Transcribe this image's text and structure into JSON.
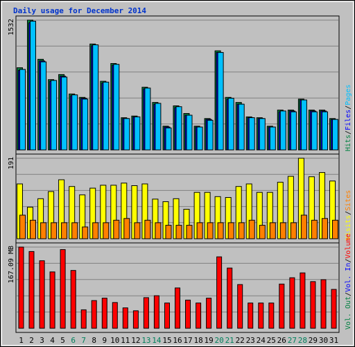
{
  "chart_data": {
    "type": "bar",
    "title": "Daily usage for December 2014",
    "categories": [
      "1",
      "2",
      "3",
      "4",
      "5",
      "6",
      "7",
      "8",
      "9",
      "10",
      "11",
      "12",
      "13",
      "14",
      "15",
      "16",
      "17",
      "18",
      "19",
      "20",
      "21",
      "22",
      "23",
      "24",
      "25",
      "26",
      "27",
      "28",
      "29",
      "30",
      "31"
    ],
    "weekend_days": [
      "6",
      "7",
      "13",
      "14",
      "20",
      "21",
      "27",
      "28"
    ],
    "colors": {
      "frame": "#000000",
      "panel_bg": "#c0c0c0",
      "grid": "#808080",
      "hits": "#008040",
      "files": "#0000ff",
      "pages": "#00c0ff",
      "sites": "#ff8000",
      "visits": "#ffff00",
      "kbytes": "#ff0000",
      "weekday_label": "#000000",
      "weekend_label": "#00805c",
      "title": "#0033cc"
    },
    "panels": [
      {
        "id": "top",
        "ymax_label": "1532",
        "ymax": 1532,
        "legend": [
          {
            "text": "Hits",
            "color": "#008040"
          },
          {
            "text": "/",
            "color": "#000000"
          },
          {
            "text": "Files",
            "color": "#0000ff"
          },
          {
            "text": "/",
            "color": "#000000"
          },
          {
            "text": "Pages",
            "color": "#00c0ff"
          }
        ],
        "series": [
          {
            "name": "Hits",
            "color": "#008040",
            "values": [
              970,
              1532,
              1070,
              830,
              890,
              660,
              620,
              1250,
              810,
              1020,
              380,
              400,
              740,
              560,
              280,
              520,
              430,
              280,
              370,
              1170,
              620,
              560,
              390,
              380,
              280,
              470,
              470,
              600,
              470,
              470,
              370
            ]
          },
          {
            "name": "Files",
            "color": "#0000ff",
            "values": [
              940,
              1500,
              1050,
              810,
              870,
              640,
              610,
              1230,
              790,
              1000,
              370,
              390,
              720,
              540,
              270,
              500,
              410,
              270,
              360,
              1150,
              600,
              540,
              380,
              370,
              270,
              450,
              460,
              590,
              460,
              460,
              360
            ]
          },
          {
            "name": "Pages",
            "color": "#00c0ff",
            "values": [
              950,
              1520,
              1040,
              820,
              860,
              650,
              600,
              1240,
              800,
              1010,
              370,
              390,
              730,
              550,
              260,
              510,
              410,
              270,
              350,
              1150,
              610,
              540,
              380,
              370,
              270,
              460,
              450,
              590,
              450,
              450,
              360
            ]
          }
        ]
      },
      {
        "id": "middle",
        "ymax_label": "191",
        "ymax": 191,
        "legend": [
          {
            "text": "Visits",
            "color": "#ffff00"
          },
          {
            "text": "/",
            "color": "#000000"
          },
          {
            "text": "Sites",
            "color": "#ff8000"
          }
        ],
        "series": [
          {
            "name": "Visits",
            "color": "#ffff00",
            "values": [
              130,
              75,
              95,
              112,
              140,
              124,
              104,
              120,
              127,
              127,
              132,
              126,
              130,
              94,
              88,
              95,
              70,
              110,
              110,
              100,
              98,
              124,
              130,
              110,
              110,
              134,
              148,
              191,
              147,
              157,
              137
            ]
          },
          {
            "name": "Sites",
            "color": "#ff8000",
            "values": [
              56,
              44,
              38,
              38,
              38,
              38,
              28,
              38,
              38,
              44,
              48,
              38,
              44,
              38,
              32,
              32,
              32,
              38,
              38,
              38,
              38,
              38,
              44,
              32,
              38,
              38,
              38,
              56,
              44,
              48,
              44
            ]
          }
        ]
      },
      {
        "id": "bottom",
        "ymax_label": "167.09 MB",
        "ymax": 167.09,
        "legend": [
          {
            "text": "Vol. Out",
            "color": "#008040"
          },
          {
            "text": "/",
            "color": "#000000"
          },
          {
            "text": "Vol. In",
            "color": "#0000ff"
          },
          {
            "text": "/",
            "color": "#000000"
          },
          {
            "text": "Volume",
            "color": "#ff0000"
          }
        ],
        "series": [
          {
            "name": "Volume",
            "color": "#ff0000",
            "values": [
              167.09,
              158,
              139,
              116,
              162,
              119,
              38,
              57,
              62,
              53,
              42,
              36,
              63,
              67,
              52,
              83,
              58,
              52,
              62,
              147,
              124,
              90,
              52,
              52,
              52,
              91,
              104,
              114,
              96,
              100,
              80
            ]
          }
        ]
      }
    ]
  }
}
